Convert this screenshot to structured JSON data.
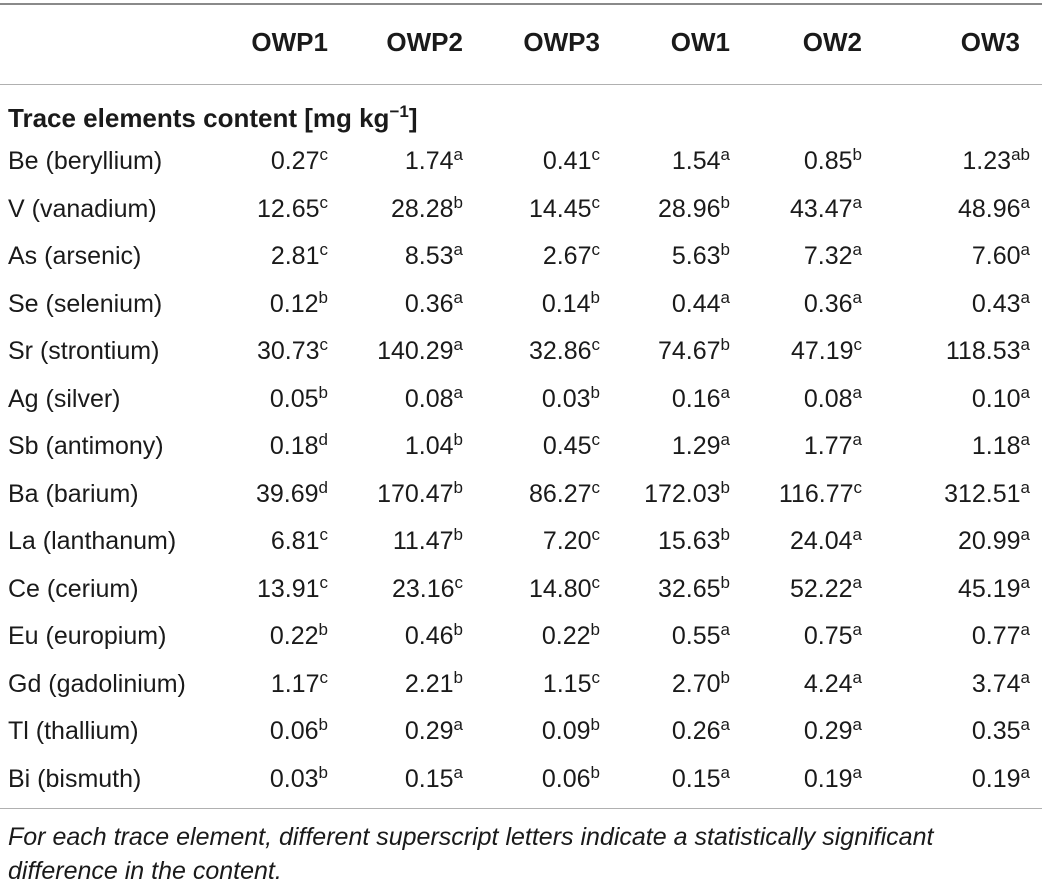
{
  "columns": [
    "OWP1",
    "OWP2",
    "OWP3",
    "OW1",
    "OW2",
    "OW3"
  ],
  "section": {
    "title": "Trace elements content [mg kg",
    "superscript": "−1",
    "closing": "]"
  },
  "rows": [
    {
      "label": "Be (beryllium)",
      "cells": [
        [
          "0.27",
          "c"
        ],
        [
          "1.74",
          "a"
        ],
        [
          "0.41",
          "c"
        ],
        [
          "1.54",
          "a"
        ],
        [
          "0.85",
          "b"
        ],
        [
          "1.23",
          "ab"
        ]
      ]
    },
    {
      "label": "V (vanadium)",
      "cells": [
        [
          "12.65",
          "c"
        ],
        [
          "28.28",
          "b"
        ],
        [
          "14.45",
          "c"
        ],
        [
          "28.96",
          "b"
        ],
        [
          "43.47",
          "a"
        ],
        [
          "48.96",
          "a"
        ]
      ]
    },
    {
      "label": "As (arsenic)",
      "cells": [
        [
          "2.81",
          "c"
        ],
        [
          "8.53",
          "a"
        ],
        [
          "2.67",
          "c"
        ],
        [
          "5.63",
          "b"
        ],
        [
          "7.32",
          "a"
        ],
        [
          "7.60",
          "a"
        ]
      ]
    },
    {
      "label": "Se (selenium)",
      "cells": [
        [
          "0.12",
          "b"
        ],
        [
          "0.36",
          "a"
        ],
        [
          "0.14",
          "b"
        ],
        [
          "0.44",
          "a"
        ],
        [
          "0.36",
          "a"
        ],
        [
          "0.43",
          "a"
        ]
      ]
    },
    {
      "label": "Sr (strontium)",
      "cells": [
        [
          "30.73",
          "c"
        ],
        [
          "140.29",
          "a"
        ],
        [
          "32.86",
          "c"
        ],
        [
          "74.67",
          "b"
        ],
        [
          "47.19",
          "c"
        ],
        [
          "118.53",
          "a"
        ]
      ]
    },
    {
      "label": "Ag (silver)",
      "cells": [
        [
          "0.05",
          "b"
        ],
        [
          "0.08",
          "a"
        ],
        [
          "0.03",
          "b"
        ],
        [
          "0.16",
          "a"
        ],
        [
          "0.08",
          "a"
        ],
        [
          "0.10",
          "a"
        ]
      ]
    },
    {
      "label": "Sb (antimony)",
      "cells": [
        [
          "0.18",
          "d"
        ],
        [
          "1.04",
          "b"
        ],
        [
          "0.45",
          "c"
        ],
        [
          "1.29",
          "a"
        ],
        [
          "1.77",
          "a"
        ],
        [
          "1.18",
          "a"
        ]
      ]
    },
    {
      "label": "Ba (barium)",
      "cells": [
        [
          "39.69",
          "d"
        ],
        [
          "170.47",
          "b"
        ],
        [
          "86.27",
          "c"
        ],
        [
          "172.03",
          "b"
        ],
        [
          "116.77",
          "c"
        ],
        [
          "312.51",
          "a"
        ]
      ]
    },
    {
      "label": "La (lanthanum)",
      "cells": [
        [
          "6.81",
          "c"
        ],
        [
          "11.47",
          "b"
        ],
        [
          "7.20",
          "c"
        ],
        [
          "15.63",
          "b"
        ],
        [
          "24.04",
          "a"
        ],
        [
          "20.99",
          "a"
        ]
      ]
    },
    {
      "label": "Ce (cerium)",
      "cells": [
        [
          "13.91",
          "c"
        ],
        [
          "23.16",
          "c"
        ],
        [
          "14.80",
          "c"
        ],
        [
          "32.65",
          "b"
        ],
        [
          "52.22",
          "a"
        ],
        [
          "45.19",
          "a"
        ]
      ]
    },
    {
      "label": "Eu (europium)",
      "cells": [
        [
          "0.22",
          "b"
        ],
        [
          "0.46",
          "b"
        ],
        [
          "0.22",
          "b"
        ],
        [
          "0.55",
          "a"
        ],
        [
          "0.75",
          "a"
        ],
        [
          "0.77",
          "a"
        ]
      ]
    },
    {
      "label": "Gd (gadolinium)",
      "cells": [
        [
          "1.17",
          "c"
        ],
        [
          "2.21",
          "b"
        ],
        [
          "1.15",
          "c"
        ],
        [
          "2.70",
          "b"
        ],
        [
          "4.24",
          "a"
        ],
        [
          "3.74",
          "a"
        ]
      ]
    },
    {
      "label": "Tl (thallium)",
      "cells": [
        [
          "0.06",
          "b"
        ],
        [
          "0.29",
          "a"
        ],
        [
          "0.09",
          "b"
        ],
        [
          "0.26",
          "a"
        ],
        [
          "0.29",
          "a"
        ],
        [
          "0.35",
          "a"
        ]
      ]
    },
    {
      "label": "Bi (bismuth)",
      "cells": [
        [
          "0.03",
          "b"
        ],
        [
          "0.15",
          "a"
        ],
        [
          "0.06",
          "b"
        ],
        [
          "0.15",
          "a"
        ],
        [
          "0.19",
          "a"
        ],
        [
          "0.19",
          "a"
        ]
      ]
    }
  ],
  "footnote": "For each trace element, different superscript letters indicate a statistically significant difference in the content."
}
